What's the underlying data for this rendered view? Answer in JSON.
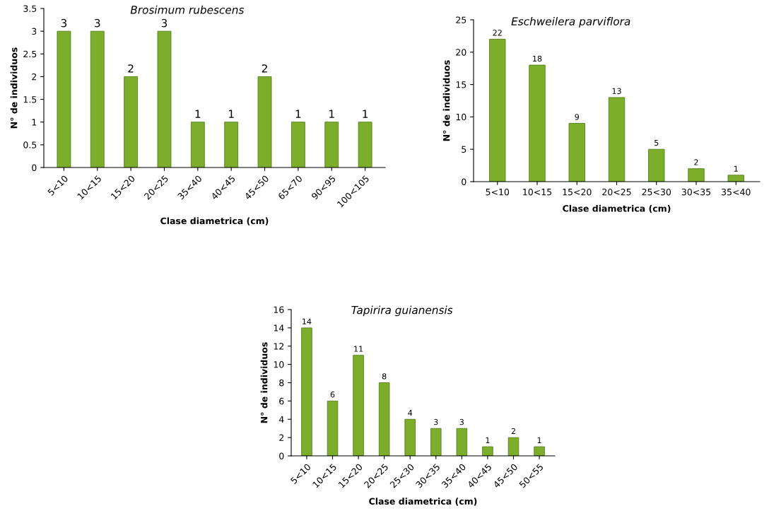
{
  "chart_data": [
    {
      "type": "bar",
      "title": "Brosimum rubescens",
      "xlabel": "Clase diametrica (cm)",
      "ylabel": "N° de individuos",
      "categories": [
        "5<10",
        "10<15",
        "15<20",
        "20<25",
        "35<40",
        "40<45",
        "45<50",
        "65<70",
        "90<95",
        "100<105"
      ],
      "values": [
        3,
        3,
        2,
        3,
        1,
        1,
        2,
        1,
        1,
        1
      ],
      "color": "#7cae2c",
      "ylim": [
        0,
        3.5
      ],
      "yticks": [
        0,
        0.5,
        1,
        1.5,
        2,
        2.5,
        3,
        3.5
      ],
      "data_labels": true,
      "grid": false,
      "legend": false
    },
    {
      "type": "bar",
      "title": "Eschweilera parviflora",
      "xlabel": "Clase diametrica (cm)",
      "ylabel": "N° de individuos",
      "categories": [
        "5<10",
        "10<15",
        "15<20",
        "20<25",
        "25<30",
        "30<35",
        "35<40"
      ],
      "values": [
        22,
        18,
        9,
        13,
        5,
        2,
        1
      ],
      "color": "#7cae2c",
      "ylim": [
        0,
        25
      ],
      "yticks": [
        0,
        5,
        10,
        15,
        20,
        25
      ],
      "data_labels": true,
      "grid": false,
      "legend": false
    },
    {
      "type": "bar",
      "title": "Tapirira guianensis",
      "xlabel": "Clase diametrica (cm)",
      "ylabel": "N° de individuos",
      "categories": [
        "5<10",
        "10<15",
        "15<20",
        "20<25",
        "25<30",
        "30<35",
        "35<40",
        "40<45",
        "45<50",
        "50<55"
      ],
      "values": [
        14,
        6,
        11,
        8,
        4,
        3,
        3,
        1,
        2,
        1
      ],
      "color": "#7cae2c",
      "ylim": [
        0,
        16
      ],
      "yticks": [
        0,
        2,
        4,
        6,
        8,
        10,
        12,
        14,
        16
      ],
      "data_labels": true,
      "grid": false,
      "legend": false
    }
  ]
}
